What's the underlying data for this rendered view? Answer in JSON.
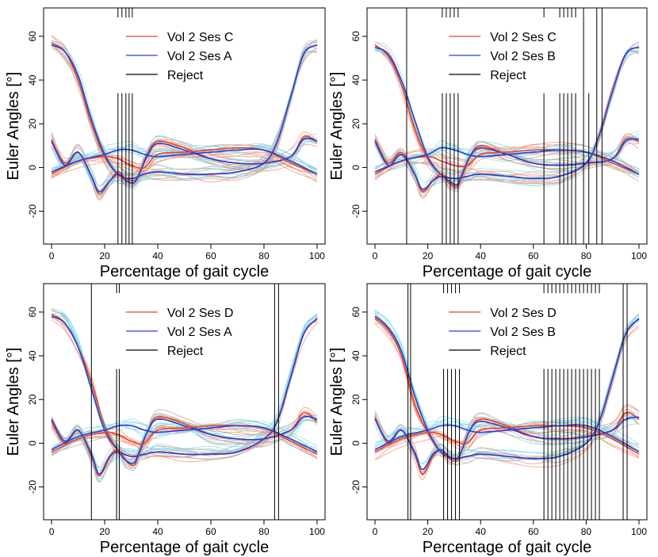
{
  "chart_data": [
    {
      "type": "line",
      "xlabel": "Percentage of gait cycle",
      "ylabel": "Euler Angles [°]",
      "xlim": [
        0,
        100
      ],
      "ylim": [
        -35,
        73
      ],
      "xticks": [
        0,
        20,
        40,
        60,
        80,
        100
      ],
      "yticks": [
        -20,
        0,
        20,
        40,
        60
      ],
      "legend": {
        "placement": "top-center",
        "entries": [
          "Vol 2 Ses C",
          "Vol 2 Ses A",
          "Reject"
        ]
      },
      "colors": {
        "first": "#e8402a",
        "second": "#2b3bd6",
        "reject": "#000000",
        "first_light": "#f08a6e",
        "second_light": "#7fdbe8"
      },
      "reject_full": [],
      "reject_top_stub": [
        25,
        26.5,
        28,
        29.2,
        30.4
      ],
      "reject_short": [
        25,
        26.5,
        28,
        29.2,
        30.4
      ],
      "series": [
        {
          "role": "first",
          "curve": "flex",
          "x": [
            0,
            5,
            10,
            15,
            20,
            25,
            30,
            35,
            40,
            50,
            60,
            70,
            80,
            85,
            90,
            95,
            100
          ],
          "y": [
            57,
            53,
            40,
            20,
            5,
            -3,
            -5,
            -3,
            -2,
            -3,
            -3,
            -2,
            2,
            12,
            32,
            52,
            56
          ]
        },
        {
          "role": "second",
          "curve": "flex",
          "x": [
            0,
            5,
            10,
            15,
            20,
            25,
            30,
            35,
            40,
            50,
            60,
            70,
            80,
            85,
            90,
            95,
            100
          ],
          "y": [
            56,
            53,
            42,
            22,
            6,
            -3,
            -5,
            -3,
            -2,
            -3,
            -3,
            -2,
            2,
            12,
            32,
            52,
            56
          ]
        },
        {
          "role": "first",
          "curve": "abd",
          "x": [
            0,
            5,
            10,
            15,
            18,
            22,
            25,
            28,
            31,
            33,
            36,
            40,
            50,
            60,
            70,
            80,
            90,
            95,
            100
          ],
          "y": [
            13,
            2,
            7,
            -4,
            -12,
            -6,
            -2,
            -5,
            -6,
            -3,
            6,
            12,
            9,
            4,
            2,
            2,
            5,
            14,
            12
          ]
        },
        {
          "role": "second",
          "curve": "abd",
          "x": [
            0,
            5,
            10,
            15,
            18,
            22,
            25,
            28,
            31,
            33,
            36,
            40,
            50,
            60,
            70,
            80,
            90,
            95,
            100
          ],
          "y": [
            12,
            1,
            7,
            -4,
            -11,
            -6,
            -3,
            -6,
            -7,
            -3,
            5,
            11,
            8,
            4,
            2,
            2,
            5,
            13,
            12
          ]
        },
        {
          "role": "first",
          "curve": "rot",
          "x": [
            0,
            10,
            20,
            25,
            30,
            35,
            40,
            50,
            60,
            70,
            80,
            90,
            100
          ],
          "y": [
            -3,
            3,
            5,
            4,
            1,
            0,
            6,
            7,
            8,
            9,
            8,
            2,
            -3
          ]
        },
        {
          "role": "second",
          "curve": "rot",
          "x": [
            0,
            10,
            20,
            25,
            30,
            35,
            40,
            50,
            60,
            70,
            80,
            90,
            100
          ],
          "y": [
            -2,
            3,
            6,
            8,
            8,
            6,
            5,
            6,
            7,
            8,
            8,
            3,
            -3
          ]
        }
      ]
    },
    {
      "type": "line",
      "xlabel": "Percentage of gait cycle",
      "ylabel": "Euler Angles [°]",
      "xlim": [
        0,
        100
      ],
      "ylim": [
        -35,
        73
      ],
      "xticks": [
        0,
        20,
        40,
        60,
        80,
        100
      ],
      "yticks": [
        -20,
        0,
        20,
        40,
        60
      ],
      "legend": {
        "placement": "top-center",
        "entries": [
          "Vol 2 Ses C",
          "Vol 2 Ses B",
          "Reject"
        ]
      },
      "colors": {
        "first": "#e8402a",
        "second": "#2b3bd6",
        "reject": "#000000",
        "first_light": "#f08a6e",
        "second_light": "#7fdbe8"
      },
      "reject_full": [
        12,
        79,
        84,
        86
      ],
      "reject_top_stub": [
        25.5,
        27,
        28.5,
        30,
        31.5,
        64,
        70,
        71.5,
        73,
        74.5,
        76
      ],
      "reject_short": [
        25.5,
        27,
        28.5,
        30,
        31.5,
        64,
        70,
        71.5,
        73,
        74.5,
        76,
        81
      ],
      "series": [
        {
          "role": "first",
          "curve": "flex",
          "x": [
            0,
            5,
            10,
            15,
            20,
            25,
            30,
            35,
            40,
            50,
            60,
            70,
            80,
            85,
            90,
            95,
            100
          ],
          "y": [
            56,
            51,
            38,
            18,
            4,
            -3,
            -5,
            -4,
            -3,
            -4,
            -5,
            -4,
            2,
            15,
            35,
            52,
            55
          ]
        },
        {
          "role": "second",
          "curve": "flex",
          "x": [
            0,
            5,
            10,
            15,
            20,
            25,
            30,
            35,
            40,
            50,
            60,
            70,
            80,
            85,
            90,
            95,
            100
          ],
          "y": [
            55,
            52,
            40,
            22,
            5,
            -3,
            -5,
            -4,
            -3,
            -4,
            -5,
            -4,
            2,
            15,
            35,
            52,
            55
          ]
        },
        {
          "role": "first",
          "curve": "abd",
          "x": [
            0,
            5,
            10,
            15,
            18,
            22,
            25,
            28,
            31,
            33,
            36,
            40,
            50,
            60,
            70,
            80,
            90,
            95,
            100
          ],
          "y": [
            13,
            2,
            7,
            -3,
            -11,
            -6,
            -3,
            -7,
            -9,
            -4,
            5,
            10,
            6,
            2,
            1,
            2,
            4,
            13,
            12
          ]
        },
        {
          "role": "second",
          "curve": "abd",
          "x": [
            0,
            5,
            10,
            15,
            18,
            22,
            25,
            28,
            31,
            33,
            36,
            40,
            50,
            60,
            70,
            80,
            90,
            95,
            100
          ],
          "y": [
            12,
            1,
            6,
            -3,
            -10,
            -6,
            -4,
            -6,
            -8,
            -3,
            5,
            9,
            6,
            2,
            1,
            2,
            4,
            12,
            13
          ]
        },
        {
          "role": "first",
          "curve": "rot",
          "x": [
            0,
            10,
            20,
            25,
            30,
            35,
            40,
            50,
            60,
            70,
            80,
            90,
            100
          ],
          "y": [
            -3,
            3,
            5,
            3,
            1,
            1,
            6,
            7,
            8,
            8,
            7,
            2,
            -3
          ]
        },
        {
          "role": "second",
          "curve": "rot",
          "x": [
            0,
            10,
            20,
            25,
            30,
            35,
            40,
            50,
            60,
            70,
            80,
            90,
            100
          ],
          "y": [
            -2,
            3,
            6,
            9,
            8,
            6,
            5,
            6,
            7,
            8,
            7,
            3,
            -3
          ]
        }
      ]
    },
    {
      "type": "line",
      "xlabel": "Percentage of gait cycle",
      "ylabel": "Euler Angles [°]",
      "xlim": [
        0,
        100
      ],
      "ylim": [
        -35,
        73
      ],
      "xticks": [
        0,
        20,
        40,
        60,
        80,
        100
      ],
      "yticks": [
        -20,
        0,
        20,
        40,
        60
      ],
      "legend": {
        "placement": "top-center",
        "entries": [
          "Vol 2 Ses D",
          "Vol 2 Ses A",
          "Reject"
        ]
      },
      "colors": {
        "first": "#e8402a",
        "second": "#2b3bd6",
        "reject": "#000000",
        "first_light": "#f08a6e",
        "second_light": "#7fdbe8"
      },
      "reject_full": [
        15,
        84,
        85.5
      ],
      "reject_top_stub": [
        24.5,
        25.5
      ],
      "reject_short": [
        24.5,
        25.5
      ],
      "series": [
        {
          "role": "first",
          "curve": "flex",
          "x": [
            0,
            5,
            10,
            15,
            20,
            25,
            30,
            35,
            40,
            50,
            60,
            70,
            80,
            85,
            90,
            95,
            100
          ],
          "y": [
            59,
            55,
            44,
            28,
            8,
            -3,
            -6,
            -5,
            -4,
            -5,
            -5,
            -4,
            2,
            10,
            30,
            50,
            57
          ]
        },
        {
          "role": "second",
          "curve": "flex",
          "x": [
            0,
            5,
            10,
            15,
            20,
            25,
            30,
            35,
            40,
            50,
            60,
            70,
            80,
            85,
            90,
            95,
            100
          ],
          "y": [
            58,
            55,
            44,
            25,
            6,
            -3,
            -6,
            -5,
            -4,
            -5,
            -5,
            -4,
            2,
            10,
            30,
            50,
            57
          ]
        },
        {
          "role": "first",
          "curve": "abd",
          "x": [
            0,
            5,
            10,
            15,
            18,
            22,
            25,
            28,
            31,
            33,
            36,
            40,
            50,
            60,
            70,
            80,
            90,
            95,
            100
          ],
          "y": [
            10,
            0,
            6,
            -6,
            -15,
            -6,
            -3,
            -8,
            -10,
            -5,
            5,
            12,
            9,
            4,
            2,
            2,
            6,
            14,
            10
          ]
        },
        {
          "role": "second",
          "curve": "abd",
          "x": [
            0,
            5,
            10,
            15,
            18,
            22,
            25,
            28,
            31,
            33,
            36,
            40,
            50,
            60,
            70,
            80,
            90,
            95,
            100
          ],
          "y": [
            11,
            1,
            6,
            -5,
            -14,
            -6,
            -4,
            -8,
            -9,
            -4,
            5,
            11,
            8,
            4,
            2,
            2,
            6,
            12,
            11
          ]
        },
        {
          "role": "first",
          "curve": "rot",
          "x": [
            0,
            10,
            20,
            25,
            30,
            35,
            40,
            50,
            60,
            70,
            80,
            90,
            100
          ],
          "y": [
            -4,
            2,
            5,
            4,
            1,
            0,
            6,
            7,
            8,
            8,
            7,
            1,
            -5
          ]
        },
        {
          "role": "second",
          "curve": "rot",
          "x": [
            0,
            10,
            20,
            25,
            30,
            35,
            40,
            50,
            60,
            70,
            80,
            90,
            100
          ],
          "y": [
            -3,
            3,
            6,
            8,
            8,
            6,
            5,
            6,
            7,
            8,
            7,
            2,
            -4
          ]
        }
      ]
    },
    {
      "type": "line",
      "xlabel": "Percentage of gait cycle",
      "ylabel": "Euler Angles [°]",
      "xlim": [
        0,
        100
      ],
      "ylim": [
        -35,
        73
      ],
      "xticks": [
        0,
        20,
        40,
        60,
        80,
        100
      ],
      "yticks": [
        -20,
        0,
        20,
        40,
        60
      ],
      "legend": {
        "placement": "top-center",
        "entries": [
          "Vol 2 Ses D",
          "Vol 2 Ses B",
          "Reject"
        ]
      },
      "colors": {
        "first": "#e8402a",
        "second": "#2b3bd6",
        "reject": "#000000",
        "first_light": "#f08a6e",
        "second_light": "#7fdbe8"
      },
      "reject_full": [
        12.5,
        13.5,
        94,
        95.5
      ],
      "reject_top_stub": [
        26,
        27.5,
        29,
        30.5,
        32
      ],
      "reject_short": [
        26,
        27.5,
        29,
        30.5,
        32
      ],
      "reject_upper": [
        64,
        65.5,
        67,
        68.5,
        70,
        71.5,
        73,
        74.5,
        76,
        77.5,
        79,
        80.5,
        82,
        83.5,
        85
      ],
      "series": [
        {
          "role": "first",
          "curve": "flex",
          "x": [
            0,
            5,
            10,
            15,
            20,
            25,
            30,
            35,
            40,
            50,
            60,
            70,
            80,
            85,
            90,
            95,
            100
          ],
          "y": [
            57,
            52,
            40,
            18,
            5,
            -4,
            -7,
            -6,
            -5,
            -6,
            -7,
            -6,
            0,
            10,
            30,
            50,
            57
          ]
        },
        {
          "role": "second",
          "curve": "flex",
          "x": [
            0,
            5,
            10,
            15,
            20,
            25,
            30,
            35,
            40,
            50,
            60,
            70,
            80,
            85,
            90,
            95,
            100
          ],
          "y": [
            58,
            53,
            42,
            22,
            6,
            -4,
            -7,
            -6,
            -5,
            -6,
            -7,
            -6,
            0,
            10,
            30,
            50,
            57
          ]
        },
        {
          "role": "first",
          "curve": "abd",
          "x": [
            0,
            5,
            10,
            15,
            18,
            22,
            25,
            28,
            31,
            33,
            36,
            40,
            50,
            60,
            70,
            80,
            90,
            95,
            100
          ],
          "y": [
            12,
            0,
            6,
            -5,
            -14,
            -6,
            -3,
            -7,
            -8,
            -3,
            6,
            11,
            8,
            3,
            2,
            3,
            6,
            14,
            11
          ]
        },
        {
          "role": "second",
          "curve": "abd",
          "x": [
            0,
            5,
            10,
            15,
            18,
            22,
            25,
            28,
            31,
            33,
            36,
            40,
            50,
            60,
            70,
            80,
            90,
            95,
            100
          ],
          "y": [
            11,
            1,
            6,
            -4,
            -12,
            -5,
            -3,
            -6,
            -7,
            -3,
            6,
            10,
            7,
            3,
            2,
            3,
            6,
            11,
            12
          ]
        },
        {
          "role": "first",
          "curve": "rot",
          "x": [
            0,
            10,
            20,
            25,
            30,
            35,
            40,
            50,
            60,
            70,
            80,
            90,
            100
          ],
          "y": [
            -4,
            2,
            5,
            4,
            1,
            0,
            6,
            7,
            8,
            8,
            7,
            2,
            -5
          ]
        },
        {
          "role": "second",
          "curve": "rot",
          "x": [
            0,
            10,
            20,
            25,
            30,
            35,
            40,
            50,
            60,
            70,
            80,
            90,
            100
          ],
          "y": [
            -3,
            3,
            6,
            8,
            8,
            6,
            5,
            6,
            7,
            8,
            8,
            3,
            -4
          ]
        }
      ]
    }
  ]
}
